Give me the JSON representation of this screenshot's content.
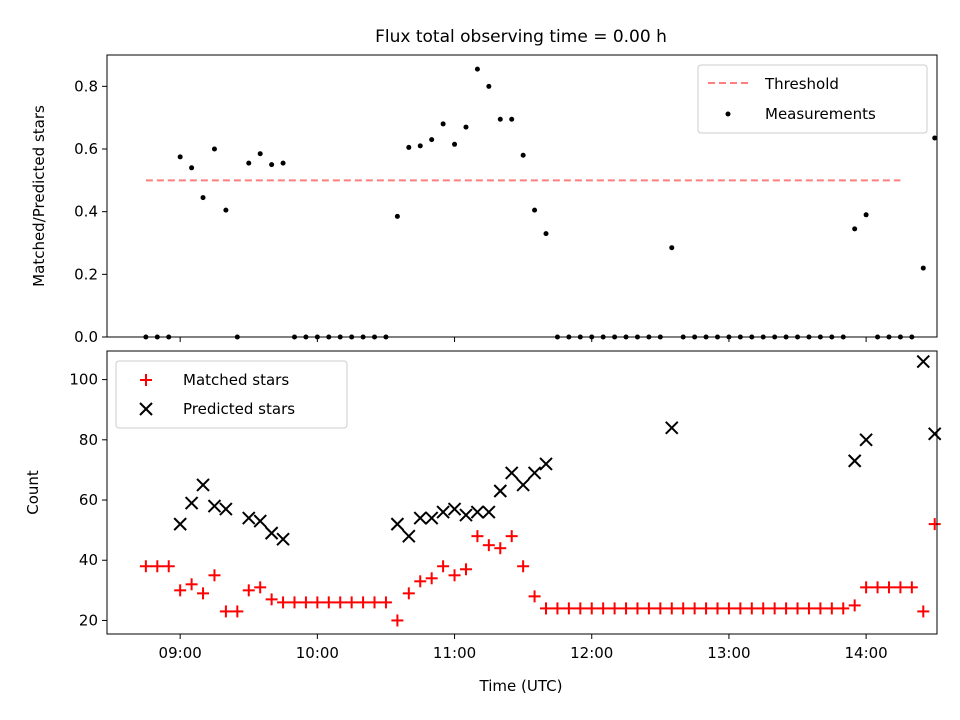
{
  "chart_data": [
    {
      "type": "scatter",
      "title": "Flux total observing time = 0.00 h",
      "xlabel": "",
      "ylabel": "Matched/Predicted stars",
      "xlim": [
        "08:28",
        "14:31"
      ],
      "ylim": [
        0,
        0.9
      ],
      "yticks": [
        "0.0",
        "0.2",
        "0.4",
        "0.6",
        "0.8"
      ],
      "x_is_time": true,
      "legend_position": "upper right",
      "threshold": {
        "name": "Threshold",
        "value": 0.5,
        "x_range": [
          "08:45",
          "14:15"
        ],
        "color": "#ff7f7f"
      },
      "series": [
        {
          "name": "Measurements",
          "color": "#000000",
          "marker": "dot",
          "points": [
            [
              "08:45",
              0
            ],
            [
              "08:50",
              0
            ],
            [
              "08:55",
              0
            ],
            [
              "09:00",
              0.575
            ],
            [
              "09:05",
              0.54
            ],
            [
              "09:10",
              0.445
            ],
            [
              "09:15",
              0.6
            ],
            [
              "09:20",
              0.405
            ],
            [
              "09:25",
              0
            ],
            [
              "09:30",
              0.555
            ],
            [
              "09:35",
              0.585
            ],
            [
              "09:40",
              0.55
            ],
            [
              "09:45",
              0.555
            ],
            [
              "09:50",
              0
            ],
            [
              "09:55",
              0
            ],
            [
              "10:00",
              0
            ],
            [
              "10:05",
              0
            ],
            [
              "10:10",
              0
            ],
            [
              "10:15",
              0
            ],
            [
              "10:20",
              0
            ],
            [
              "10:25",
              0
            ],
            [
              "10:30",
              0
            ],
            [
              "10:35",
              0.385
            ],
            [
              "10:40",
              0.605
            ],
            [
              "10:45",
              0.61
            ],
            [
              "10:50",
              0.63
            ],
            [
              "10:55",
              0.68
            ],
            [
              "11:00",
              0.615
            ],
            [
              "11:05",
              0.67
            ],
            [
              "11:10",
              0.855
            ],
            [
              "11:15",
              0.8
            ],
            [
              "11:20",
              0.695
            ],
            [
              "11:25",
              0.695
            ],
            [
              "11:30",
              0.58
            ],
            [
              "11:35",
              0.405
            ],
            [
              "11:40",
              0.33
            ],
            [
              "11:45",
              0
            ],
            [
              "11:50",
              0
            ],
            [
              "11:55",
              0
            ],
            [
              "12:00",
              0
            ],
            [
              "12:05",
              0
            ],
            [
              "12:10",
              0
            ],
            [
              "12:15",
              0
            ],
            [
              "12:20",
              0
            ],
            [
              "12:25",
              0
            ],
            [
              "12:30",
              0
            ],
            [
              "12:35",
              0.285
            ],
            [
              "12:40",
              0
            ],
            [
              "12:45",
              0
            ],
            [
              "12:50",
              0
            ],
            [
              "12:55",
              0
            ],
            [
              "13:00",
              0
            ],
            [
              "13:05",
              0
            ],
            [
              "13:10",
              0
            ],
            [
              "13:15",
              0
            ],
            [
              "13:20",
              0
            ],
            [
              "13:25",
              0
            ],
            [
              "13:30",
              0
            ],
            [
              "13:35",
              0
            ],
            [
              "13:40",
              0
            ],
            [
              "13:45",
              0
            ],
            [
              "13:50",
              0
            ],
            [
              "13:55",
              0.345
            ],
            [
              "14:00",
              0.39
            ],
            [
              "14:05",
              0
            ],
            [
              "14:10",
              0
            ],
            [
              "14:15",
              0
            ],
            [
              "14:20",
              0
            ],
            [
              "14:25",
              0.22
            ],
            [
              "14:30",
              0.635
            ]
          ]
        }
      ]
    },
    {
      "type": "scatter",
      "title": "",
      "xlabel": "Time (UTC)",
      "ylabel": "Count",
      "xlim": [
        "08:28",
        "14:31"
      ],
      "ylim": [
        15.5,
        109.5
      ],
      "yticks": [
        "20",
        "40",
        "60",
        "80",
        "100"
      ],
      "xticks": [
        "09:00",
        "10:00",
        "11:00",
        "12:00",
        "13:00",
        "14:00"
      ],
      "x_is_time": true,
      "legend_position": "upper left",
      "series": [
        {
          "name": "Matched stars",
          "color": "#ff0000",
          "marker": "plus",
          "points": [
            [
              "08:45",
              38
            ],
            [
              "08:50",
              38
            ],
            [
              "08:55",
              38
            ],
            [
              "09:00",
              30
            ],
            [
              "09:05",
              32
            ],
            [
              "09:10",
              29
            ],
            [
              "09:15",
              35
            ],
            [
              "09:20",
              23
            ],
            [
              "09:25",
              23
            ],
            [
              "09:30",
              30
            ],
            [
              "09:35",
              31
            ],
            [
              "09:40",
              27
            ],
            [
              "09:45",
              26
            ],
            [
              "09:50",
              26
            ],
            [
              "09:55",
              26
            ],
            [
              "10:00",
              26
            ],
            [
              "10:05",
              26
            ],
            [
              "10:10",
              26
            ],
            [
              "10:15",
              26
            ],
            [
              "10:20",
              26
            ],
            [
              "10:25",
              26
            ],
            [
              "10:30",
              26
            ],
            [
              "10:35",
              20
            ],
            [
              "10:40",
              29
            ],
            [
              "10:45",
              33
            ],
            [
              "10:50",
              34
            ],
            [
              "10:55",
              38
            ],
            [
              "11:00",
              35
            ],
            [
              "11:05",
              37
            ],
            [
              "11:10",
              48
            ],
            [
              "11:15",
              45
            ],
            [
              "11:20",
              44
            ],
            [
              "11:25",
              48
            ],
            [
              "11:30",
              38
            ],
            [
              "11:35",
              28
            ],
            [
              "11:40",
              24
            ],
            [
              "11:45",
              24
            ],
            [
              "11:50",
              24
            ],
            [
              "11:55",
              24
            ],
            [
              "12:00",
              24
            ],
            [
              "12:05",
              24
            ],
            [
              "12:10",
              24
            ],
            [
              "12:15",
              24
            ],
            [
              "12:20",
              24
            ],
            [
              "12:25",
              24
            ],
            [
              "12:30",
              24
            ],
            [
              "12:35",
              24
            ],
            [
              "12:40",
              24
            ],
            [
              "12:45",
              24
            ],
            [
              "12:50",
              24
            ],
            [
              "12:55",
              24
            ],
            [
              "13:00",
              24
            ],
            [
              "13:05",
              24
            ],
            [
              "13:10",
              24
            ],
            [
              "13:15",
              24
            ],
            [
              "13:20",
              24
            ],
            [
              "13:25",
              24
            ],
            [
              "13:30",
              24
            ],
            [
              "13:35",
              24
            ],
            [
              "13:40",
              24
            ],
            [
              "13:45",
              24
            ],
            [
              "13:50",
              24
            ],
            [
              "13:55",
              25
            ],
            [
              "14:00",
              31
            ],
            [
              "14:05",
              31
            ],
            [
              "14:10",
              31
            ],
            [
              "14:15",
              31
            ],
            [
              "14:20",
              31
            ],
            [
              "14:25",
              23
            ],
            [
              "14:30",
              52
            ]
          ]
        },
        {
          "name": "Predicted stars",
          "color": "#000000",
          "marker": "cross",
          "points": [
            [
              "09:00",
              52
            ],
            [
              "09:05",
              59
            ],
            [
              "09:10",
              65
            ],
            [
              "09:15",
              58
            ],
            [
              "09:20",
              57
            ],
            [
              "09:30",
              54
            ],
            [
              "09:35",
              53
            ],
            [
              "09:40",
              49
            ],
            [
              "09:45",
              47
            ],
            [
              "10:35",
              52
            ],
            [
              "10:40",
              48
            ],
            [
              "10:45",
              54
            ],
            [
              "10:50",
              54
            ],
            [
              "10:55",
              56
            ],
            [
              "11:00",
              57
            ],
            [
              "11:05",
              55
            ],
            [
              "11:10",
              56
            ],
            [
              "11:15",
              56
            ],
            [
              "11:20",
              63
            ],
            [
              "11:25",
              69
            ],
            [
              "11:30",
              65
            ],
            [
              "11:35",
              69
            ],
            [
              "11:40",
              72
            ],
            [
              "12:35",
              84
            ],
            [
              "13:55",
              73
            ],
            [
              "14:00",
              80
            ],
            [
              "14:25",
              106
            ],
            [
              "14:30",
              82
            ]
          ]
        }
      ]
    }
  ]
}
